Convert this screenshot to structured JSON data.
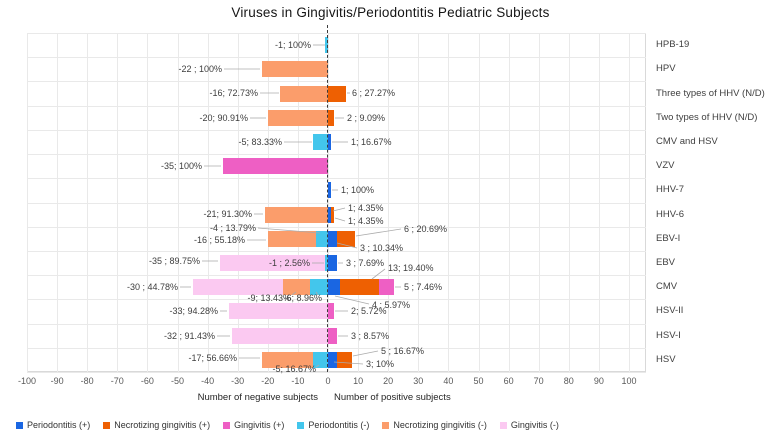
{
  "chart_data": {
    "type": "bar",
    "subtype": "diverging_stacked_horizontal",
    "title": "Viruses in Gingivitis/Periodontitis Pediatric Subjects",
    "grid": true,
    "zero_line": "dashed",
    "legend_position": "bottom",
    "x_axis": {
      "min": -100,
      "max": 100,
      "step": 10,
      "tick_labels": [
        "-100",
        "-90",
        "-80",
        "-70",
        "-60",
        "-50",
        "-40",
        "-30",
        "-20",
        "-10",
        "0",
        "10",
        "20",
        "30",
        "40",
        "50",
        "60",
        "70",
        "80",
        "90",
        "100"
      ],
      "caption_negative": "Number of negative subjects",
      "caption_positive": "Number of positive subjects"
    },
    "series": {
      "periodontitis_pos": {
        "label": "Periodontitis (+)",
        "color": "#1a66e2"
      },
      "necrotizing_pos": {
        "label": "Necrotizing gingivitis (+)",
        "color": "#ee6002"
      },
      "gingivitis_pos": {
        "label": "Gingivitis (+)",
        "color": "#ee5fc4"
      },
      "periodontitis_neg": {
        "label": "Periodontitis (-)",
        "color": "#43c6ec"
      },
      "necrotizing_neg": {
        "label": "Necrotizing gingivitis (-)",
        "color": "#fb9d6b"
      },
      "gingivitis_neg": {
        "label": "Gingivitis (-)",
        "color": "#fbc9f1"
      }
    },
    "legend_order": [
      "periodontitis_pos",
      "necrotizing_pos",
      "gingivitis_pos",
      "periodontitis_neg",
      "necrotizing_neg",
      "gingivitis_neg"
    ],
    "rows": [
      {
        "virus": "HPB-19",
        "segments": [
          {
            "series": "periodontitis_neg",
            "value": -1,
            "label": "-1; 100%"
          }
        ]
      },
      {
        "virus": "HPV",
        "segments": [
          {
            "series": "necrotizing_neg",
            "value": -22,
            "label": "-22 ; 100%"
          }
        ]
      },
      {
        "virus": "Three types of HHV (N/D)",
        "segments": [
          {
            "series": "necrotizing_neg",
            "value": -16,
            "label": "-16; 72.73%"
          },
          {
            "series": "necrotizing_pos",
            "value": 6,
            "label": "6 ; 27.27%"
          }
        ]
      },
      {
        "virus": "Two types of HHV (N/D)",
        "segments": [
          {
            "series": "necrotizing_neg",
            "value": -20,
            "label": "-20; 90.91%"
          },
          {
            "series": "necrotizing_pos",
            "value": 2,
            "label": "2 ; 9.09%"
          }
        ]
      },
      {
        "virus": "CMV and HSV",
        "segments": [
          {
            "series": "periodontitis_neg",
            "value": -5,
            "label": "-5; 83.33%"
          },
          {
            "series": "periodontitis_pos",
            "value": 1,
            "label": "1; 16.67%"
          }
        ]
      },
      {
        "virus": "VZV",
        "segments": [
          {
            "series": "gingivitis_pos",
            "value": -35,
            "label": "-35; 100%"
          }
        ]
      },
      {
        "virus": "HHV-7",
        "segments": [
          {
            "series": "periodontitis_pos",
            "value": 1,
            "label": "1; 100%"
          }
        ]
      },
      {
        "virus": "HHV-6",
        "segments": [
          {
            "series": "necrotizing_neg",
            "value": -21,
            "label": "-21; 91.30%"
          },
          {
            "series": "periodontitis_pos",
            "value": 1,
            "label": "1; 4.35%"
          },
          {
            "series": "necrotizing_pos",
            "value": 1,
            "label": "1; 4.35%"
          }
        ]
      },
      {
        "virus": "EBV-I",
        "segments": [
          {
            "series": "periodontitis_neg",
            "value": -4,
            "label": "-4 ; 13.79%"
          },
          {
            "series": "necrotizing_neg",
            "value": -16,
            "label": "-16 ; 55.18%"
          },
          {
            "series": "periodontitis_pos",
            "value": 3,
            "label": "3 ; 10.34%"
          },
          {
            "series": "necrotizing_pos",
            "value": 6,
            "label": "6 ; 20.69%"
          }
        ]
      },
      {
        "virus": "EBV",
        "segments": [
          {
            "series": "periodontitis_neg",
            "value": -1,
            "label": "-1 ; 2.56%"
          },
          {
            "series": "gingivitis_neg",
            "value": -35,
            "label": "-35 ; 89.75%"
          },
          {
            "series": "periodontitis_pos",
            "value": 3,
            "label": "3 ; 7.69%"
          }
        ]
      },
      {
        "virus": "CMV",
        "segments": [
          {
            "series": "periodontitis_neg",
            "value": -6,
            "label": "-6; 8.96%"
          },
          {
            "series": "necrotizing_neg",
            "value": -9,
            "label": "-9; 13.43%"
          },
          {
            "series": "gingivitis_neg",
            "value": -30,
            "label": "-30 ; 44.78%"
          },
          {
            "series": "periodontitis_pos",
            "value": 4,
            "label": "4 ; 5.97%"
          },
          {
            "series": "necrotizing_pos",
            "value": 13,
            "label": "13; 19.40%"
          },
          {
            "series": "gingivitis_pos",
            "value": 5,
            "label": "5 ; 7.46%"
          }
        ]
      },
      {
        "virus": "HSV-II",
        "segments": [
          {
            "series": "gingivitis_neg",
            "value": -33,
            "label": "-33; 94.28%"
          },
          {
            "series": "gingivitis_pos",
            "value": 2,
            "label": "2; 5.72%"
          }
        ]
      },
      {
        "virus": "HSV-I",
        "segments": [
          {
            "series": "gingivitis_neg",
            "value": -32,
            "label": "-32 ; 91.43%"
          },
          {
            "series": "gingivitis_pos",
            "value": 3,
            "label": "3 ; 8.57%"
          }
        ]
      },
      {
        "virus": "HSV",
        "segments": [
          {
            "series": "periodontitis_neg",
            "value": -5,
            "label": "-5; 16.67%"
          },
          {
            "series": "necrotizing_neg",
            "value": -17,
            "label": "-17; 56.66%"
          },
          {
            "series": "periodontitis_pos",
            "value": 3,
            "label": "3; 10%"
          },
          {
            "series": "necrotizing_pos",
            "value": 5,
            "label": "5 ; 16.67%"
          }
        ]
      }
    ]
  }
}
